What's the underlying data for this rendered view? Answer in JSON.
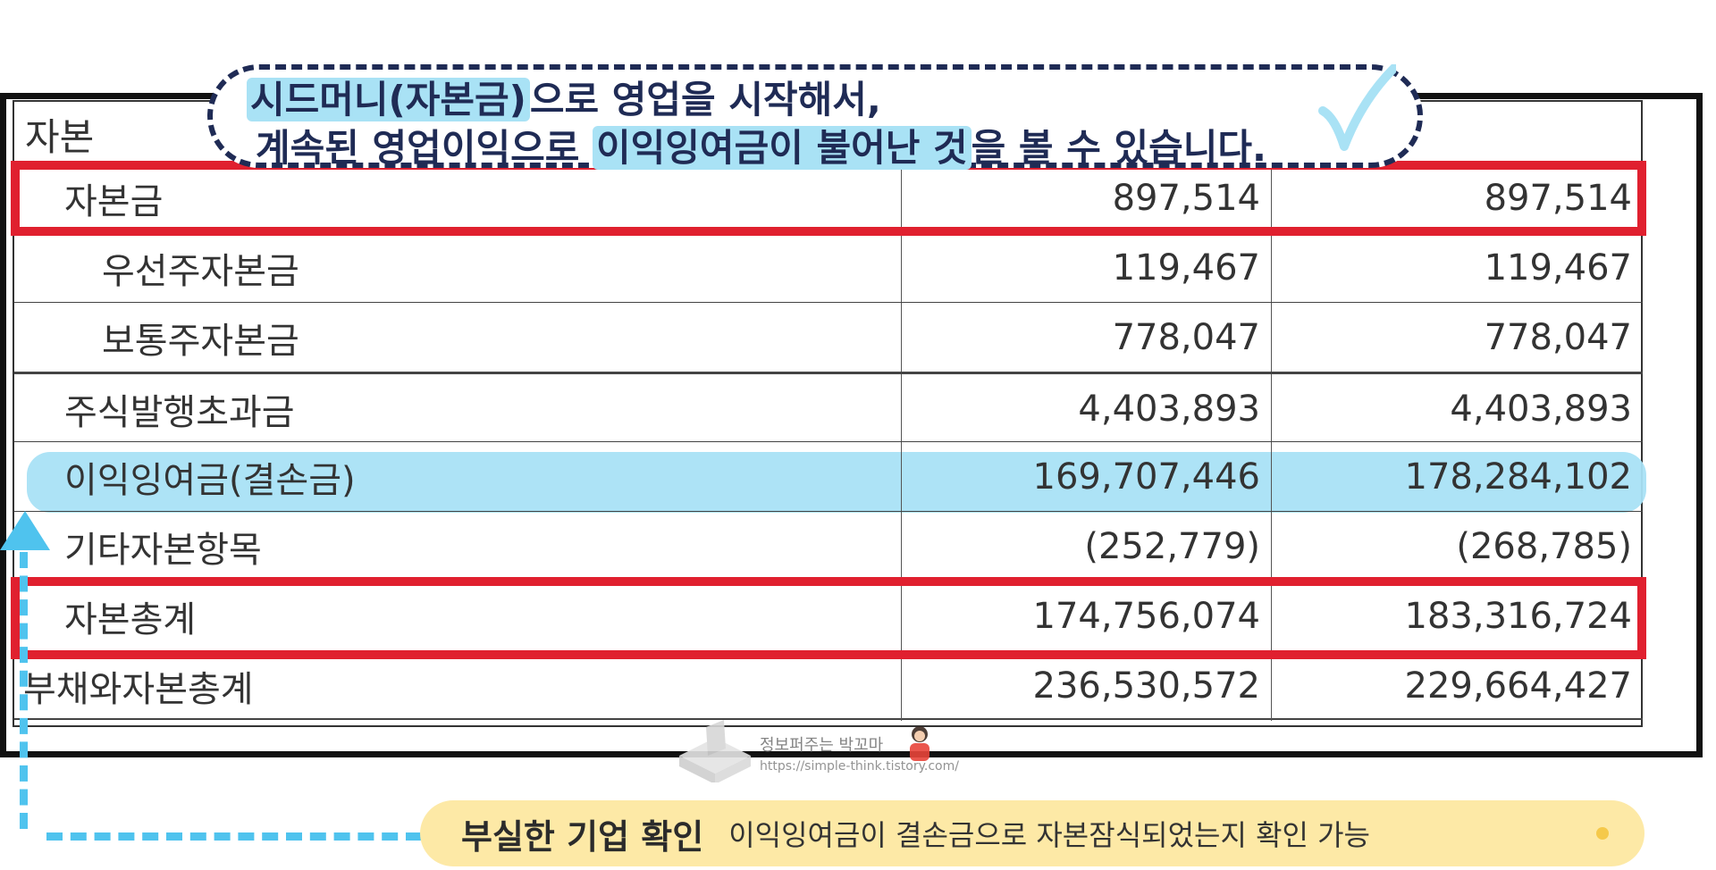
{
  "callout": {
    "line1_mark": "시드머니(자본금)",
    "line1_rest": "으로 영업을 시작해서,",
    "line2_pre": "계속된 영업이익으로 ",
    "line2_mark": "이익잉여금이 불어난 것",
    "line2_rest": "을 볼 수 있습니다."
  },
  "table": {
    "header": "자본",
    "rows": [
      {
        "label": "자본금",
        "v1": "897,514",
        "v2": "897,514"
      },
      {
        "label": "우선주자본금",
        "v1": "119,467",
        "v2": "119,467"
      },
      {
        "label": "보통주자본금",
        "v1": "778,047",
        "v2": "778,047"
      },
      {
        "label": "주식발행초과금",
        "v1": "4,403,893",
        "v2": "4,403,893"
      },
      {
        "label": "이익잉여금(결손금)",
        "v1": "169,707,446",
        "v2": "178,284,102"
      },
      {
        "label": "기타자본항목",
        "v1": "(252,779)",
        "v2": "(268,785)"
      },
      {
        "label": "자본총계",
        "v1": "174,756,074",
        "v2": "183,316,724"
      },
      {
        "label": "부채와자본총계",
        "v1": "236,530,572",
        "v2": "229,664,427"
      }
    ]
  },
  "tag": {
    "title": "부실한 기업 확인",
    "description": "이익잉여금이 결손금으로 자본잠식되었는지 확인 가능"
  },
  "watermark": {
    "name": "정보퍼주는 박꼬마",
    "url": "https://simple-think.tistory.com/"
  },
  "colors": {
    "highlight": "#a9e2f5",
    "red_box": "#e0202f",
    "callout_text": "#1f2b55",
    "tag_bg": "#fde9a6",
    "arrow": "#4fc3ee"
  },
  "icons": {
    "check": "check-mark-icon",
    "arrow": "arrow-up-icon",
    "logo": "watermark-logo-icon"
  }
}
